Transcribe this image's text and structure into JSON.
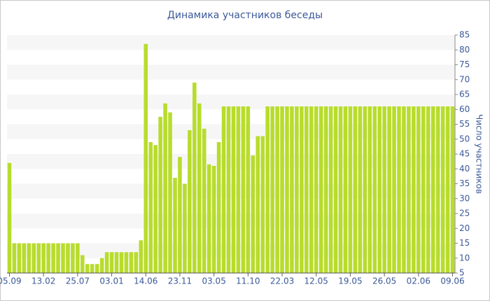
{
  "chart_data": {
    "type": "bar",
    "title": "Динамика участников беседы",
    "y_label": "Число участников",
    "categories": [
      "05.09",
      null,
      null,
      null,
      null,
      null,
      null,
      "13.02",
      null,
      null,
      null,
      null,
      null,
      null,
      "25.07",
      null,
      null,
      null,
      null,
      null,
      null,
      "03.01",
      null,
      null,
      null,
      null,
      null,
      null,
      "14.06",
      null,
      null,
      null,
      null,
      null,
      null,
      "23.11",
      null,
      null,
      null,
      null,
      null,
      null,
      "03.05",
      null,
      null,
      null,
      null,
      null,
      null,
      "11.10",
      null,
      null,
      null,
      null,
      null,
      null,
      "22.03",
      null,
      null,
      null,
      null,
      null,
      null,
      "12.05",
      null,
      null,
      null,
      null,
      null,
      null,
      "19.05",
      null,
      null,
      null,
      null,
      null,
      null,
      "26.05",
      null,
      null,
      null,
      null,
      null,
      null,
      "02.06",
      null,
      null,
      null,
      null,
      null,
      null,
      "09.06"
    ],
    "values": [
      42,
      15,
      15,
      15,
      15,
      15,
      15,
      15,
      15,
      15,
      15,
      15,
      15,
      15,
      15,
      11,
      8,
      8,
      8,
      10,
      12,
      12,
      12,
      12,
      12,
      12,
      12,
      16,
      82,
      49,
      48,
      57.5,
      62,
      59,
      37,
      44,
      35,
      53,
      69,
      62,
      53.5,
      41.5,
      41,
      49,
      61,
      61,
      61,
      61,
      61,
      61,
      44.5,
      51,
      51,
      61,
      61,
      61,
      61,
      61,
      61,
      61,
      61,
      61,
      61,
      61,
      61,
      61,
      61,
      61,
      61,
      61,
      61,
      61,
      61,
      61,
      61,
      61,
      61,
      61,
      61,
      61,
      61,
      61,
      61,
      61,
      61,
      61,
      61,
      61,
      61,
      61,
      61,
      61
    ],
    "color": "#b8dc2c",
    "ylim": [
      5,
      85
    ],
    "yticks": [
      5,
      10,
      15,
      20,
      25,
      30,
      35,
      40,
      45,
      50,
      55,
      60,
      65,
      70,
      75,
      80,
      85
    ],
    "y_axis_side": "right",
    "grid": true
  }
}
